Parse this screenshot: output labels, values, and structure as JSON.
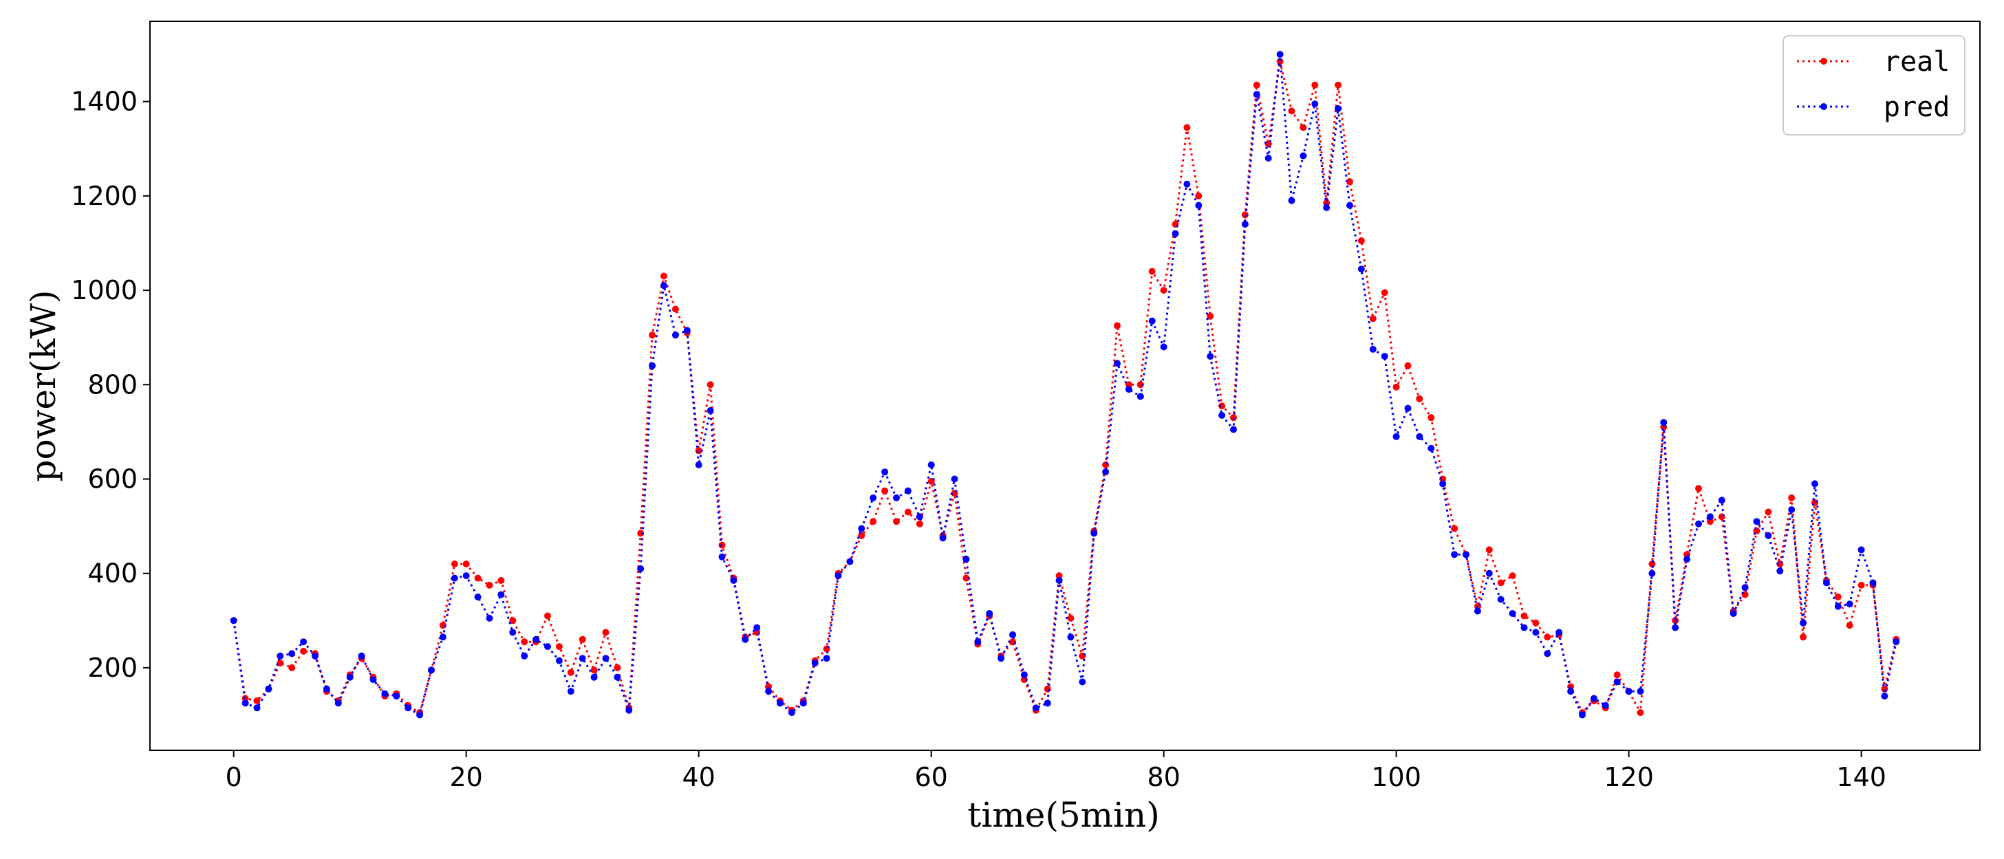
{
  "chart_data": {
    "type": "line",
    "title": "",
    "xlabel": "time(5min)",
    "ylabel": "power(kW)",
    "xlim": [
      -7.2,
      150.2
    ],
    "ylim": [
      25,
      1570
    ],
    "xticks": [
      0,
      20,
      40,
      60,
      80,
      100,
      120,
      140
    ],
    "xtick_labels": [
      "0",
      "20",
      "40",
      "60",
      "80",
      "100",
      "120",
      "140"
    ],
    "yticks": [
      200,
      400,
      600,
      800,
      1000,
      1200,
      1400
    ],
    "ytick_labels": [
      "200",
      "400",
      "600",
      "800",
      "1000",
      "1200",
      "1400"
    ],
    "grid": false,
    "legend_position": "top-right",
    "series": [
      {
        "name": "real",
        "color": "#ff0000",
        "line_style": "dotted",
        "marker": "circle",
        "values": [
          300,
          135,
          130,
          155,
          210,
          200,
          235,
          230,
          150,
          130,
          185,
          220,
          180,
          140,
          145,
          120,
          105,
          195,
          290,
          420,
          420,
          390,
          375,
          385,
          300,
          255,
          255,
          310,
          245,
          190,
          260,
          195,
          275,
          200,
          115,
          485,
          905,
          1030,
          960,
          910,
          660,
          800,
          460,
          390,
          265,
          275,
          160,
          130,
          110,
          130,
          215,
          240,
          400,
          425,
          480,
          510,
          575,
          510,
          530,
          505,
          595,
          480,
          570,
          390,
          250,
          310,
          225,
          255,
          175,
          110,
          155,
          395,
          305,
          225,
          490,
          630,
          925,
          800,
          800,
          1040,
          1000,
          1140,
          1345,
          1200,
          945,
          755,
          730,
          1160,
          1435,
          1310,
          1485,
          1380,
          1345,
          1435,
          1185,
          1435,
          1230,
          1105,
          940,
          995,
          795,
          840,
          770,
          730,
          600,
          495,
          440,
          330,
          450,
          380,
          395,
          310,
          295,
          265,
          270,
          160,
          105,
          130,
          115,
          185,
          150,
          105,
          420,
          710,
          300,
          440,
          580,
          510,
          520,
          320,
          355,
          490,
          530,
          420,
          560,
          265,
          550,
          385,
          350,
          290,
          375,
          375,
          155,
          260
        ]
      },
      {
        "name": "pred",
        "color": "#0000ff",
        "line_style": "dotted",
        "marker": "circle",
        "values": [
          300,
          125,
          115,
          155,
          225,
          230,
          255,
          225,
          155,
          125,
          180,
          225,
          175,
          145,
          140,
          115,
          100,
          195,
          265,
          390,
          395,
          350,
          305,
          355,
          275,
          225,
          260,
          245,
          215,
          150,
          220,
          180,
          220,
          180,
          110,
          410,
          840,
          1010,
          905,
          915,
          630,
          745,
          435,
          385,
          260,
          285,
          150,
          125,
          105,
          125,
          210,
          220,
          395,
          425,
          495,
          560,
          615,
          560,
          575,
          520,
          630,
          475,
          600,
          430,
          255,
          315,
          220,
          270,
          185,
          115,
          125,
          385,
          265,
          170,
          485,
          615,
          845,
          790,
          775,
          935,
          880,
          1120,
          1225,
          1180,
          860,
          735,
          705,
          1140,
          1415,
          1280,
          1500,
          1190,
          1285,
          1395,
          1175,
          1385,
          1180,
          1045,
          875,
          860,
          690,
          750,
          690,
          665,
          590,
          440,
          440,
          320,
          400,
          345,
          315,
          285,
          275,
          230,
          275,
          150,
          100,
          135,
          120,
          170,
          150,
          150,
          400,
          720,
          285,
          430,
          505,
          520,
          555,
          315,
          370,
          510,
          480,
          405,
          535,
          295,
          590,
          380,
          330,
          335,
          450,
          380,
          140,
          255
        ]
      }
    ]
  }
}
